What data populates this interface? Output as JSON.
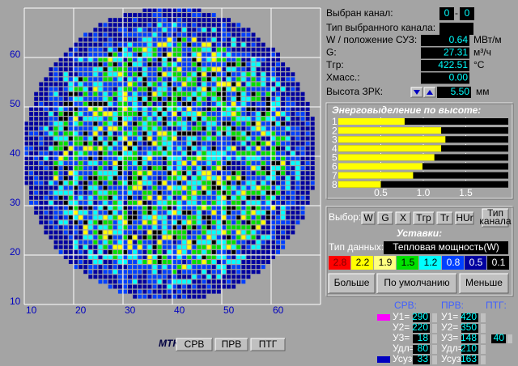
{
  "map": {
    "y_labels": [
      "60",
      "50",
      "40",
      "30",
      "20",
      "10"
    ],
    "x_labels": [
      "10",
      "20",
      "30",
      "40",
      "50",
      "60"
    ]
  },
  "info": {
    "channel": {
      "label": "Выбран канал:",
      "first": "0",
      "separator": "-",
      "second": "0"
    },
    "type": {
      "label": "Тип выбранного канала:"
    },
    "rows": [
      {
        "label": "W / положение СУЗ:",
        "value": "0.64",
        "unit": "МВт/м"
      },
      {
        "label": "G:",
        "value": "27.31",
        "unit": "м³/ч"
      },
      {
        "label": "Tгр:",
        "value": "422.51",
        "unit": "°C"
      },
      {
        "label": "Хмасс.:",
        "value": "0.00"
      }
    ],
    "height": {
      "label": "Высота ЗРК:",
      "value": "5.50",
      "unit": "мм"
    }
  },
  "energy": {
    "title": "Энерговыделение по высоте:",
    "categories": [
      "1",
      "2",
      "3",
      "4",
      "5",
      "6",
      "7",
      "8"
    ],
    "values": [
      0.78,
      1.21,
      1.26,
      1.21,
      1.13,
      0.99,
      0.88,
      0.5
    ],
    "color": "#ffff00",
    "xlim": [
      0,
      2
    ],
    "xticks": [
      0.5,
      {
        "value": 1,
        "label": "1.0"
      },
      1.5
    ]
  },
  "settings": {
    "select_label": "Выбор:",
    "buttons": [
      "W",
      "G",
      "X",
      "Tгр",
      "Tr",
      "HUr"
    ],
    "channel_type_button": [
      "Тип",
      "канала"
    ],
    "title": "Уставки:",
    "data_type_label": "Тип данных:",
    "data_type": "Тепловая мощность(W)",
    "legend": [
      {
        "label": "2.8",
        "color": "#ff0000"
      },
      {
        "label": "2.2",
        "color": "#ffff00"
      },
      {
        "label": "1.9",
        "color": "#ffff80"
      },
      {
        "label": "1.5",
        "color": "#00e000"
      },
      {
        "label": "1.2",
        "color": "#00ffff"
      },
      {
        "label": "0.8",
        "color": "#0040ff"
      },
      {
        "label": "0.5",
        "color": "#0000a0"
      },
      {
        "label": "0.1",
        "color": "#000000"
      }
    ],
    "actions": [
      "Больше",
      "По умолчанию",
      "Меньше"
    ]
  },
  "limits": {
    "headers": [
      "СРВ:",
      "ПРВ:",
      "ПТГ:"
    ],
    "rows": [
      {
        "srv_label": "У1=",
        "srv": "290",
        "prv_label": "У1=",
        "prv": "420"
      },
      {
        "srv_label": "У2=",
        "srv": "220",
        "prv_label": "У2=",
        "prv": "350"
      },
      {
        "srv_label": "У3=",
        "srv": "18",
        "prv_label": "У3=",
        "prv": "148",
        "ptg": "40"
      },
      {
        "srv_label": "Удл=",
        "srv": "80",
        "prv_label": "Удл=",
        "prv": "210"
      },
      {
        "srv_label": "Усуз=",
        "srv": "33",
        "prv_label": "Усуз=",
        "prv": "163"
      }
    ]
  },
  "mtk": {
    "label": "МТК",
    "buttons": [
      "СРВ",
      "ПРВ",
      "ПТГ"
    ]
  }
}
